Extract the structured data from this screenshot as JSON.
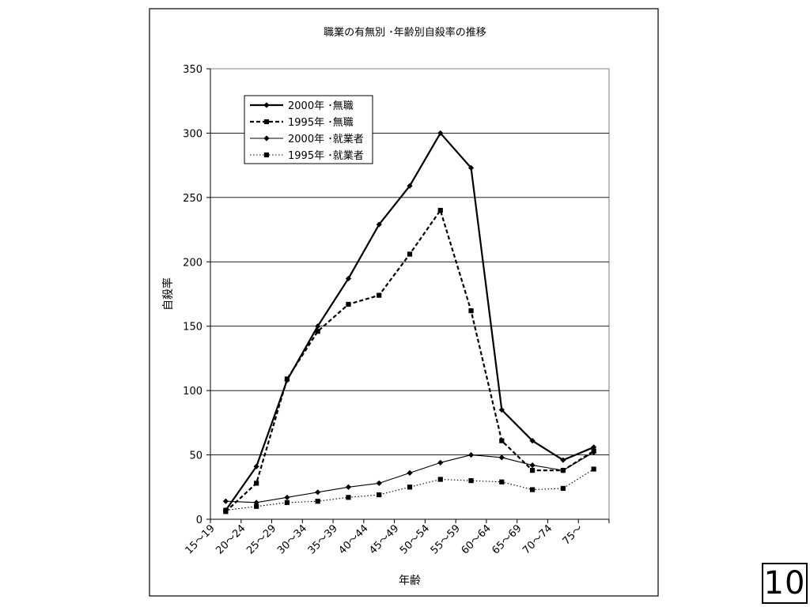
{
  "slide": {
    "page_number": "10"
  },
  "chart_data": {
    "type": "line",
    "title": "職業の有無別 ･年齢別自殺率の推移",
    "xlabel": "年齢",
    "ylabel": "自殺率",
    "ylim": [
      0,
      350
    ],
    "yticks": [
      0,
      50,
      100,
      150,
      200,
      250,
      300,
      350
    ],
    "grid": "horizontal",
    "legend_position": "top-left",
    "categories": [
      "15～19",
      "20～24",
      "25～29",
      "30～34",
      "35～39",
      "40～44",
      "45～49",
      "50～54",
      "55～59",
      "60～64",
      "65～69",
      "70～74",
      "75～"
    ],
    "series": [
      {
        "name": "2000年 ･無職",
        "marker": "diamond",
        "line": "solid",
        "weight": "bold",
        "values": [
          7,
          41,
          108,
          150,
          187,
          229,
          259,
          300,
          273,
          85,
          61,
          46,
          56
        ]
      },
      {
        "name": "1995年 ･無職",
        "marker": "square",
        "line": "dashed",
        "weight": "bold",
        "values": [
          6,
          28,
          109,
          146,
          167,
          174,
          206,
          240,
          162,
          61,
          38,
          38,
          53
        ]
      },
      {
        "name": "2000年 ･就業者",
        "marker": "diamond",
        "line": "solid",
        "weight": "thin",
        "values": [
          14,
          13,
          17,
          21,
          25,
          28,
          36,
          44,
          50,
          48,
          42,
          38,
          52
        ]
      },
      {
        "name": "1995年 ･就業者",
        "marker": "square",
        "line": "dotted",
        "weight": "thin",
        "values": [
          7,
          10,
          13,
          14,
          17,
          19,
          25,
          31,
          30,
          29,
          23,
          24,
          39
        ]
      }
    ]
  }
}
